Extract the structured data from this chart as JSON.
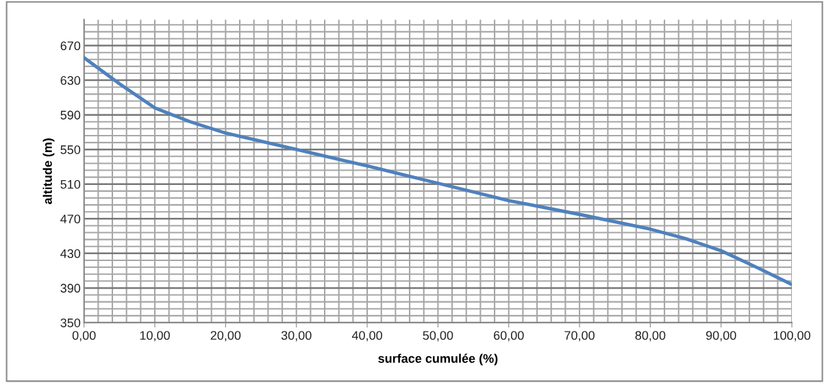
{
  "chart_data": {
    "type": "line",
    "xlabel": "surface cumulée (%)",
    "ylabel": "altitude (m)",
    "x": [
      0,
      5,
      10,
      15,
      20,
      30,
      40,
      50,
      60,
      70,
      80,
      85,
      90,
      95,
      100
    ],
    "series": [
      {
        "color": "#4f81bd",
        "values": [
          656,
          626,
          598,
          582,
          569,
          550,
          531,
          511,
          491,
          475,
          458,
          447,
          433,
          414,
          394
        ]
      }
    ],
    "xlim": [
      0,
      100
    ],
    "ylim": [
      350,
      700
    ],
    "xticks": [
      {
        "value": 0,
        "label": "0,00"
      },
      {
        "value": 10,
        "label": "10,00"
      },
      {
        "value": 20,
        "label": "20,00"
      },
      {
        "value": 30,
        "label": "30,00"
      },
      {
        "value": 40,
        "label": "40,00"
      },
      {
        "value": 50,
        "label": "50,00"
      },
      {
        "value": 60,
        "label": "60,00"
      },
      {
        "value": 70,
        "label": "70,00"
      },
      {
        "value": 80,
        "label": "80,00"
      },
      {
        "value": 90,
        "label": "90,00"
      },
      {
        "value": 100,
        "label": "100,00"
      }
    ],
    "yticks": [
      350,
      390,
      430,
      470,
      510,
      550,
      590,
      630,
      670
    ],
    "grid": true,
    "marker": "none",
    "line_style": "solid",
    "legend": false
  }
}
